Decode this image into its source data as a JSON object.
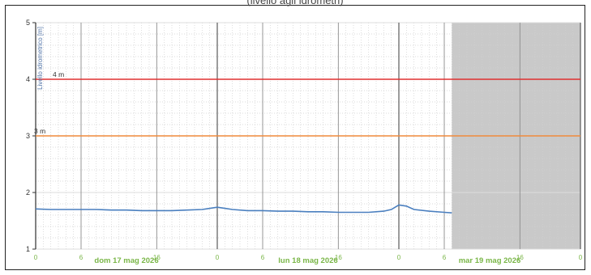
{
  "caption": "(livello agli idrometri)",
  "colors": {
    "series": "#4a7fbf",
    "alarm_high": "#e03030",
    "alarm_mid": "#f08a3c",
    "forecast_shade": "#c9c9c9",
    "date_labels": "#7ab648",
    "y_labels": "#5577aa",
    "grid_major": "#8c8c8c",
    "grid_minor": "#d0d0d0"
  },
  "chart_data": {
    "type": "line",
    "title": "",
    "ylabel": "Livello idrometrico [m]",
    "ylim": [
      1,
      5
    ],
    "yticks": [
      1,
      2,
      3,
      4,
      5
    ],
    "xlim_hours": [
      0,
      72
    ],
    "x_axis_start": "2026-05-17T00:00",
    "hour_ticks": [
      {
        "h": 0,
        "label": "0"
      },
      {
        "h": 6,
        "label": "6"
      },
      {
        "h": 16,
        "label": "16"
      },
      {
        "h": 24,
        "label": "0"
      },
      {
        "h": 30,
        "label": "6"
      },
      {
        "h": 40,
        "label": "16"
      },
      {
        "h": 48,
        "label": "0"
      },
      {
        "h": 54,
        "label": "6"
      },
      {
        "h": 64,
        "label": "16"
      },
      {
        "h": 72,
        "label": "0"
      }
    ],
    "day_labels": [
      {
        "h": 12,
        "label": "dom 17 mag 2026"
      },
      {
        "h": 36,
        "label": "lun 18 mag 2026"
      },
      {
        "h": 60,
        "label": "mar 19 mag 2026"
      }
    ],
    "reference_lines": [
      {
        "value": 4,
        "label": "4 m",
        "color": "#e03030"
      },
      {
        "value": 3,
        "label": "3 m",
        "color": "#f08a3c"
      }
    ],
    "shaded_region_hours": [
      55,
      72
    ],
    "series": [
      {
        "x_hours": [
          0,
          2,
          4,
          6,
          8,
          10,
          12,
          14,
          16,
          18,
          20,
          22,
          24,
          25,
          26,
          28,
          30,
          32,
          34,
          36,
          38,
          40,
          42,
          44,
          46,
          47,
          48,
          49,
          50,
          52,
          54,
          55
        ],
        "values": [
          1.71,
          1.7,
          1.7,
          1.7,
          1.7,
          1.69,
          1.69,
          1.68,
          1.68,
          1.68,
          1.69,
          1.7,
          1.74,
          1.72,
          1.7,
          1.68,
          1.68,
          1.67,
          1.67,
          1.66,
          1.66,
          1.65,
          1.65,
          1.65,
          1.67,
          1.7,
          1.78,
          1.76,
          1.7,
          1.67,
          1.65,
          1.64
        ]
      }
    ]
  }
}
